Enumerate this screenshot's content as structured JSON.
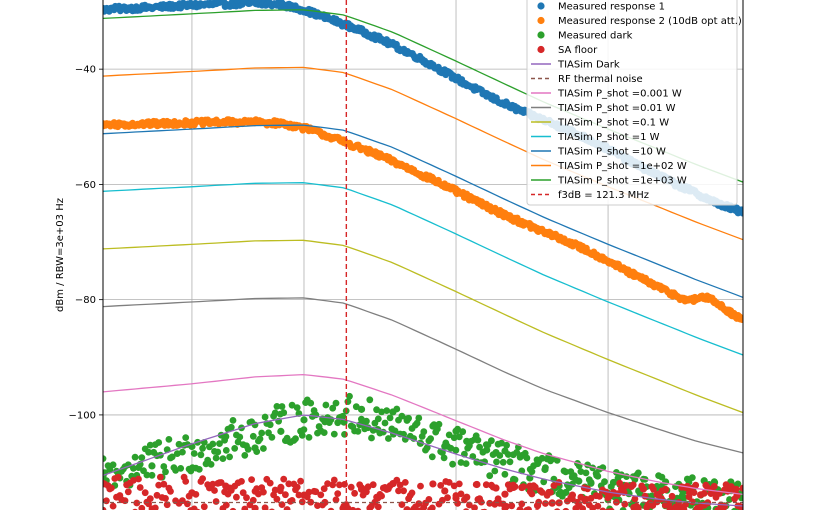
{
  "chart_data": {
    "type": "scatter",
    "ylabel": "dBm / RBW=3e+03 Hz",
    "x_scale": "log",
    "grid": true,
    "legend_position": "top-right",
    "yticks": [
      -40,
      -60,
      -80,
      -100
    ],
    "ylim": [
      -116.5,
      -28
    ],
    "f3db_line": {
      "label": "f3dB = 121.3 MHz",
      "x": 121.3,
      "color": "#d62728"
    },
    "series": [
      {
        "name": "Measured response 1",
        "kind": "scatter",
        "color": "#1f77b4",
        "x": [
          40,
          50,
          60,
          70,
          80,
          90,
          100,
          110,
          120,
          130,
          140,
          150,
          160,
          170,
          180,
          190,
          200,
          210,
          220,
          230,
          240,
          250,
          260,
          270,
          280,
          290,
          300,
          310,
          320,
          330,
          340,
          350,
          360,
          370,
          380,
          390,
          400,
          410,
          420,
          430,
          440,
          450,
          460,
          470,
          480,
          490,
          500,
          510,
          520,
          530,
          540,
          550,
          560,
          570,
          580,
          590,
          600,
          610,
          620,
          630,
          640,
          650,
          660,
          670,
          680,
          690,
          700,
          710,
          720,
          730,
          740
        ],
        "y": [
          -29.6,
          -29.3,
          -28.9,
          -28.7,
          -28.6,
          -28.8,
          -29.7,
          -31.0,
          -32.2,
          -33.4,
          -34.6,
          -35.8,
          -37.0,
          -38.2,
          -39.4,
          -40.5,
          -41.6,
          -42.6,
          -43.6,
          -44.5,
          -45.3,
          -46.0,
          -46.7,
          -47.3,
          -47.9,
          -48.4,
          -48.9,
          -49.4,
          -49.9,
          -50.4,
          -50.9,
          -51.4,
          -51.9,
          -52.4,
          -52.9,
          -53.4,
          -53.9,
          -54.4,
          -54.9,
          -55.4,
          -55.9,
          -56.3,
          -56.7,
          -57.1,
          -57.5,
          -57.9,
          -58.3,
          -58.7,
          -59.0,
          -59.4,
          -59.8,
          -60.1,
          -60.4,
          -60.7,
          -61.0,
          -61.3,
          -61.6,
          -61.9,
          -62.2,
          -62.5,
          -62.8,
          -63.1,
          -63.3,
          -63.5,
          -63.7,
          -63.9,
          -64.1,
          -64.3,
          -64.5,
          -64.7,
          -64.9
        ]
      },
      {
        "name": "Measured response 2 (10dB opt att.)",
        "kind": "scatter",
        "color": "#ff7f0e",
        "x": [
          40,
          50,
          60,
          70,
          80,
          90,
          100,
          110,
          120,
          130,
          140,
          150,
          160,
          170,
          180,
          190,
          200,
          210,
          220,
          230,
          240,
          250,
          260,
          270,
          280,
          290,
          300,
          310,
          320,
          330,
          340,
          350,
          360,
          370,
          380,
          390,
          400,
          410,
          420,
          430,
          440,
          450,
          460,
          470,
          480,
          490,
          500,
          510,
          520,
          530,
          540,
          550,
          560,
          570,
          580,
          590,
          600,
          610,
          620,
          630,
          640,
          650,
          660,
          670,
          680,
          690,
          700,
          710,
          720,
          730,
          740
        ],
        "y": [
          -49.6,
          -49.5,
          -49.3,
          -49.2,
          -49.2,
          -49.4,
          -50.2,
          -51.4,
          -52.6,
          -53.8,
          -54.9,
          -56.0,
          -57.1,
          -58.2,
          -59.2,
          -60.2,
          -61.2,
          -62.1,
          -63.0,
          -63.8,
          -64.6,
          -65.3,
          -66.0,
          -66.6,
          -67.2,
          -67.8,
          -68.3,
          -68.8,
          -69.3,
          -69.8,
          -70.3,
          -70.8,
          -71.3,
          -71.8,
          -72.3,
          -72.8,
          -73.3,
          -73.8,
          -74.3,
          -74.8,
          -75.3,
          -75.7,
          -76.1,
          -76.5,
          -76.9,
          -77.3,
          -77.7,
          -78.1,
          -78.4,
          -78.8,
          -79.1,
          -79.4,
          -79.7,
          -80.0,
          -80.2,
          -80.1,
          -79.8,
          -79.6,
          -79.6,
          -79.8,
          -80.0,
          -80.3,
          -80.7,
          -81.1,
          -81.5,
          -81.9,
          -82.3,
          -82.6,
          -82.9,
          -83.2,
          -83.5
        ]
      },
      {
        "name": "Measured dark",
        "kind": "scatter",
        "color": "#2ca02c",
        "x": [
          40,
          50,
          60,
          70,
          80,
          90,
          100,
          110,
          120,
          130,
          140,
          150,
          160,
          170,
          180,
          190,
          200,
          210,
          220,
          230,
          240,
          250,
          260,
          270,
          280,
          290,
          300,
          310,
          320,
          330,
          340,
          350,
          360,
          370,
          380,
          390,
          400,
          410,
          420,
          430,
          440,
          450,
          460,
          470,
          480,
          490,
          500,
          510,
          520,
          530,
          540,
          550,
          560,
          570,
          580,
          590,
          600,
          610,
          620,
          630,
          640,
          650,
          660,
          670,
          680,
          690,
          700,
          710,
          720,
          730,
          740
        ],
        "y": [
          -110.5,
          -108.5,
          -106.5,
          -104.8,
          -103.2,
          -101.8,
          -100.8,
          -100.2,
          -100.0,
          -100.4,
          -101.2,
          -102.0,
          -102.8,
          -103.6,
          -104.4,
          -105.0,
          -105.6,
          -106.2,
          -106.8,
          -107.3,
          -107.8,
          -108.3,
          -108.8,
          -109.2,
          -109.6,
          -110.0,
          -110.3,
          -110.6,
          -110.9,
          -111.2,
          -111.5,
          -111.8,
          -112.0,
          -112.2,
          -112.4,
          -112.6,
          -112.8,
          -113.0,
          -113.1,
          -113.2,
          -113.3,
          -113.4,
          -113.5,
          -113.6,
          -113.7,
          -113.8,
          -113.9,
          -114.0,
          -114.0,
          -114.1,
          -114.1,
          -114.2,
          -114.2,
          -114.3,
          -114.3,
          -114.3,
          -114.4,
          -114.4,
          -114.4,
          -114.5,
          -114.5,
          -114.5,
          -114.5,
          -114.6,
          -114.6,
          -114.6,
          -114.6,
          -114.6,
          -114.7,
          -114.7,
          -114.7
        ]
      },
      {
        "name": "SA floor",
        "kind": "scatter",
        "color": "#d62728",
        "x": [
          40,
          50,
          60,
          70,
          80,
          90,
          100,
          110,
          120,
          130,
          140,
          150,
          160,
          170,
          180,
          190,
          200,
          210,
          220,
          230,
          240,
          250,
          260,
          270,
          280,
          290,
          300,
          310,
          320,
          330,
          340,
          350,
          360,
          370,
          380,
          390,
          400,
          410,
          420,
          430,
          440,
          450,
          460,
          470,
          480,
          490,
          500,
          510,
          520,
          530,
          540,
          550,
          560,
          570,
          580,
          590,
          600,
          610,
          620,
          630,
          640,
          650,
          660,
          670,
          680,
          690,
          700,
          710,
          720,
          730,
          740
        ],
        "y": [
          -114.0,
          -114.2,
          -114.3,
          -114.4,
          -114.5,
          -114.6,
          -114.6,
          -114.7,
          -114.7,
          -114.8,
          -114.8,
          -114.8,
          -114.9,
          -114.9,
          -114.9,
          -115.0,
          -115.0,
          -115.0,
          -115.0,
          -115.1,
          -115.1,
          -115.1,
          -115.1,
          -115.1,
          -115.2,
          -115.2,
          -115.2,
          -115.2,
          -115.2,
          -115.2,
          -115.2,
          -115.3,
          -115.3,
          -115.3,
          -115.3,
          -115.3,
          -115.3,
          -115.3,
          -115.3,
          -115.3,
          -115.3,
          -115.4,
          -115.4,
          -115.4,
          -115.4,
          -115.4,
          -115.4,
          -115.4,
          -115.4,
          -115.4,
          -115.4,
          -115.4,
          -115.4,
          -115.4,
          -115.4,
          -115.4,
          -115.5,
          -115.5,
          -115.5,
          -115.5,
          -115.5,
          -115.5,
          -115.5,
          -115.5,
          -115.5,
          -115.5,
          -115.5,
          -115.5,
          -115.5,
          -115.5,
          -115.5
        ]
      },
      {
        "name": "TIASim Dark",
        "kind": "line",
        "color": "#9467bd",
        "x": [
          40,
          60,
          80,
          100,
          120,
          150,
          200,
          250,
          300,
          400,
          500,
          600,
          740
        ],
        "y": [
          -110.5,
          -105.0,
          -101.5,
          -100.0,
          -100.8,
          -103.2,
          -106.8,
          -109.4,
          -111.2,
          -113.4,
          -114.6,
          -115.3,
          -115.8
        ]
      },
      {
        "name": "RF thermal noise",
        "kind": "line",
        "dashed": true,
        "color": "#8c564b",
        "x": [
          40,
          740
        ],
        "y": [
          -115.2,
          -115.2
        ]
      },
      {
        "name": "TIASim P_shot =0.001 W",
        "kind": "line",
        "color": "#e377c2",
        "x": [
          40,
          60,
          80,
          100,
          120,
          150,
          200,
          250,
          300,
          400,
          500,
          600,
          740
        ],
        "y": [
          -96.0,
          -94.6,
          -93.4,
          -93.0,
          -93.8,
          -96.6,
          -101.0,
          -104.4,
          -106.8,
          -109.8,
          -111.6,
          -112.8,
          -113.8
        ]
      },
      {
        "name": "TIASim P_shot =0.01 W",
        "kind": "line",
        "color": "#7f7f7f",
        "x": [
          40,
          60,
          80,
          100,
          120,
          150,
          200,
          250,
          300,
          400,
          500,
          600,
          740
        ],
        "y": [
          -81.2,
          -80.4,
          -79.8,
          -79.7,
          -80.6,
          -83.6,
          -88.6,
          -92.6,
          -95.6,
          -99.6,
          -102.4,
          -104.6,
          -106.6
        ]
      },
      {
        "name": "TIASim P_shot =0.1 W",
        "kind": "line",
        "color": "#bcbd22",
        "x": [
          40,
          60,
          80,
          100,
          120,
          150,
          200,
          250,
          300,
          400,
          500,
          600,
          740
        ],
        "y": [
          -71.2,
          -70.4,
          -69.8,
          -69.7,
          -70.6,
          -73.6,
          -78.6,
          -82.6,
          -85.8,
          -90.4,
          -93.8,
          -96.6,
          -99.6
        ]
      },
      {
        "name": "TIASim P_shot =1 W",
        "kind": "line",
        "color": "#17becf",
        "x": [
          40,
          60,
          80,
          100,
          120,
          150,
          200,
          250,
          300,
          400,
          500,
          600,
          740
        ],
        "y": [
          -61.2,
          -60.4,
          -59.8,
          -59.7,
          -60.6,
          -63.6,
          -68.6,
          -72.6,
          -75.8,
          -80.4,
          -83.8,
          -86.6,
          -89.6
        ]
      },
      {
        "name": "TIASim P_shot =10 W",
        "kind": "line",
        "color": "#1f77b4",
        "x": [
          40,
          60,
          80,
          100,
          120,
          150,
          200,
          250,
          300,
          400,
          500,
          600,
          740
        ],
        "y": [
          -51.2,
          -50.4,
          -49.8,
          -49.7,
          -50.6,
          -53.6,
          -58.6,
          -62.6,
          -65.8,
          -70.4,
          -73.8,
          -76.6,
          -79.6
        ]
      },
      {
        "name": "TIASim P_shot =1e+02 W",
        "kind": "line",
        "color": "#ff7f0e",
        "x": [
          40,
          60,
          80,
          100,
          120,
          150,
          200,
          250,
          300,
          400,
          500,
          600,
          740
        ],
        "y": [
          -41.2,
          -40.4,
          -39.8,
          -39.7,
          -40.6,
          -43.6,
          -48.6,
          -52.6,
          -55.8,
          -60.4,
          -63.8,
          -66.6,
          -69.6
        ]
      },
      {
        "name": "TIASim P_shot =1e+03 W",
        "kind": "line",
        "color": "#2ca02c",
        "x": [
          40,
          60,
          80,
          100,
          120,
          150,
          200,
          250,
          300,
          400,
          500,
          600,
          740
        ],
        "y": [
          -31.2,
          -30.4,
          -29.8,
          -29.7,
          -30.6,
          -33.6,
          -38.6,
          -42.6,
          -45.8,
          -50.4,
          -53.8,
          -56.6,
          -59.6
        ]
      }
    ]
  }
}
